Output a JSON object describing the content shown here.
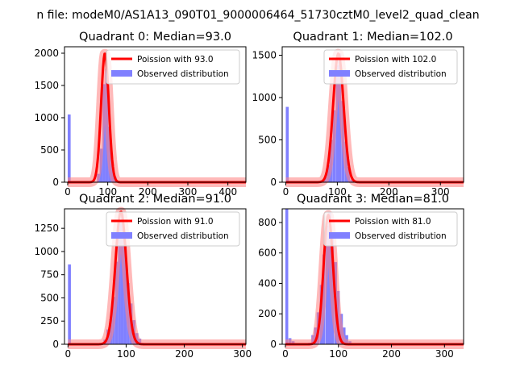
{
  "suptitle": "n file: modeM0/AS1A13_090T01_9000006464_51730cztM0_level2_quad_clean",
  "colors": {
    "fit": "#ff0000",
    "fit_band": "#ff8080",
    "observed": "#8080ff",
    "axis": "#000000"
  },
  "chart_data": [
    {
      "type": "bar",
      "title": "Quadrant 0: Median=93.0",
      "xlabel": "",
      "ylabel": "",
      "xlim": [
        -8,
        445
      ],
      "ylim": [
        0,
        2100
      ],
      "xticks": [
        0,
        100,
        200,
        300,
        400
      ],
      "yticks": [
        0,
        500,
        1000,
        1500,
        2000
      ],
      "grid": false,
      "legend_position": "top-right",
      "series": [
        {
          "name": "Poission with 93.0",
          "kind": "line",
          "mean": 93.0,
          "peak": 2000
        },
        {
          "name": "Observed distribution",
          "kind": "bar",
          "bin_width": 7.3,
          "bins": [
            [
              0,
              1050
            ],
            [
              66,
              5
            ],
            [
              73,
              130
            ],
            [
              80,
              520
            ],
            [
              87,
              1520
            ],
            [
              94,
              1760
            ],
            [
              101,
              860
            ],
            [
              108,
              290
            ],
            [
              115,
              80
            ],
            [
              122,
              15
            ]
          ]
        }
      ]
    },
    {
      "type": "bar",
      "title": "Quadrant 1: Median=102.0",
      "xlabel": "",
      "ylabel": "",
      "xlim": [
        -7,
        345
      ],
      "ylim": [
        0,
        1600
      ],
      "xticks": [
        0,
        100,
        200,
        300
      ],
      "yticks": [
        0,
        500,
        1000,
        1500
      ],
      "grid": false,
      "legend_position": "top-right",
      "series": [
        {
          "name": "Poission with 102.0",
          "kind": "line",
          "mean": 102.0,
          "peak": 1520
        },
        {
          "name": "Observed distribution",
          "kind": "bar",
          "bin_width": 5.7,
          "bins": [
            [
              0,
              890
            ],
            [
              68,
              15
            ],
            [
              74,
              60
            ],
            [
              80,
              200
            ],
            [
              85,
              500
            ],
            [
              91,
              850
            ],
            [
              97,
              1380
            ],
            [
              102,
              1520
            ],
            [
              108,
              960
            ],
            [
              114,
              480
            ],
            [
              119,
              180
            ],
            [
              125,
              30
            ],
            [
              131,
              10
            ]
          ]
        }
      ]
    },
    {
      "type": "bar",
      "title": "Quadrant 2: Median=91.0",
      "xlabel": "",
      "ylabel": "",
      "xlim": [
        -6,
        306
      ],
      "ylim": [
        0,
        1460
      ],
      "xticks": [
        0,
        100,
        200,
        300
      ],
      "yticks": [
        0,
        250,
        500,
        750,
        1000,
        1250
      ],
      "grid": false,
      "legend_position": "top-right",
      "series": [
        {
          "name": "Poission with 91.0",
          "kind": "line",
          "mean": 91.0,
          "peak": 1430
        },
        {
          "name": "Observed distribution",
          "kind": "bar",
          "bin_width": 5.0,
          "bins": [
            [
              0,
              860
            ],
            [
              56,
              10
            ],
            [
              61,
              50
            ],
            [
              66,
              160
            ],
            [
              71,
              270
            ],
            [
              76,
              510
            ],
            [
              81,
              890
            ],
            [
              86,
              1320
            ],
            [
              91,
              1400
            ],
            [
              96,
              1080
            ],
            [
              101,
              660
            ],
            [
              106,
              440
            ],
            [
              111,
              260
            ],
            [
              116,
              120
            ],
            [
              121,
              60
            ],
            [
              126,
              15
            ]
          ]
        }
      ]
    },
    {
      "type": "bar",
      "title": "Quadrant 3: Median=81.0",
      "xlabel": "",
      "ylabel": "",
      "xlim": [
        -6,
        336
      ],
      "ylim": [
        0,
        890
      ],
      "xticks": [
        0,
        100,
        200,
        300
      ],
      "yticks": [
        0,
        200,
        400,
        600,
        800
      ],
      "grid": false,
      "legend_position": "top-right",
      "series": [
        {
          "name": "Poission with 81.0",
          "kind": "line",
          "mean": 81.0,
          "peak": 850
        },
        {
          "name": "Observed distribution",
          "kind": "bar",
          "bin_width": 5.4,
          "bins": [
            [
              0,
              890
            ],
            [
              6,
              40
            ],
            [
              12,
              20
            ],
            [
              43,
              10
            ],
            [
              49,
              60
            ],
            [
              54,
              110
            ],
            [
              59,
              210
            ],
            [
              65,
              390
            ],
            [
              70,
              590
            ],
            [
              76,
              780
            ],
            [
              81,
              870
            ],
            [
              86,
              730
            ],
            [
              92,
              540
            ],
            [
              97,
              350
            ],
            [
              103,
              200
            ],
            [
              108,
              110
            ],
            [
              113,
              60
            ],
            [
              119,
              20
            ]
          ]
        }
      ]
    }
  ]
}
